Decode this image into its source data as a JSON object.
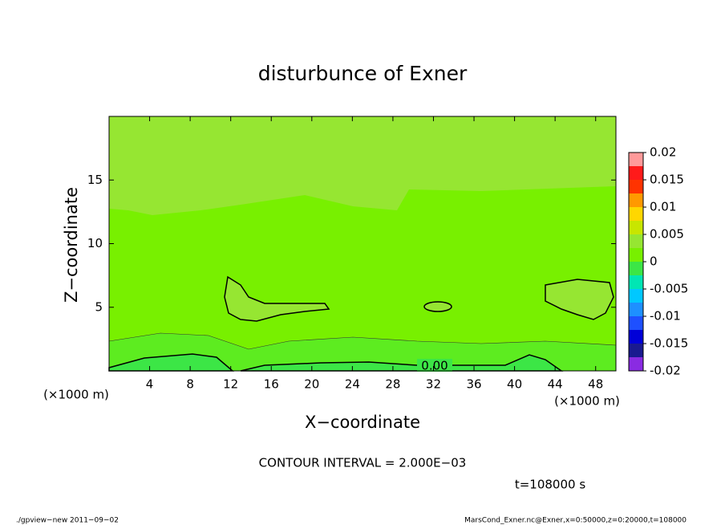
{
  "chart_data": {
    "type": "contour",
    "title": "disturbunce of Exner",
    "x_label": "X−coordinate",
    "y_label": "Z−coordinate",
    "x_unit_left": "(×1000 m)",
    "x_unit_right": "(×1000 m)",
    "xlim": [
      0,
      50
    ],
    "ylim": [
      0,
      20
    ],
    "xticks": [
      4,
      8,
      12,
      16,
      20,
      24,
      28,
      32,
      36,
      40,
      44,
      48
    ],
    "yticks": [
      5,
      10,
      15
    ],
    "levels": [
      -0.02,
      -0.0175,
      -0.015,
      -0.0125,
      -0.01,
      -0.0075,
      -0.005,
      -0.0025,
      0,
      0.0025,
      0.005,
      0.0075,
      0.01,
      0.0125,
      0.015,
      0.0175,
      0.02
    ],
    "colors": [
      "#8a2be2",
      "#1a1a90",
      "#0000d8",
      "#1e50ff",
      "#1e90ff",
      "#00c8ff",
      "#00e6b4",
      "#3ce646",
      "#78f000",
      "#96e632",
      "#c8e600",
      "#ffd700",
      "#ff9900",
      "#ff3300",
      "#ff1a1a",
      "#ff9a9a"
    ],
    "colorbar_ticks": [
      0.02,
      0.015,
      0.01,
      0.005,
      0,
      -0.005,
      -0.01,
      -0.015,
      -0.02
    ],
    "contour_label": "0.00",
    "contour_interval": "CONTOUR INTERVAL = 2.000E−03",
    "time_label": "t=108000 s",
    "footer_left": "./gpview−new   2011−09−02",
    "footer_right": "MarsCond_Exner.nc@Exner,x=0:50000,z=0:20000,t=108000"
  }
}
